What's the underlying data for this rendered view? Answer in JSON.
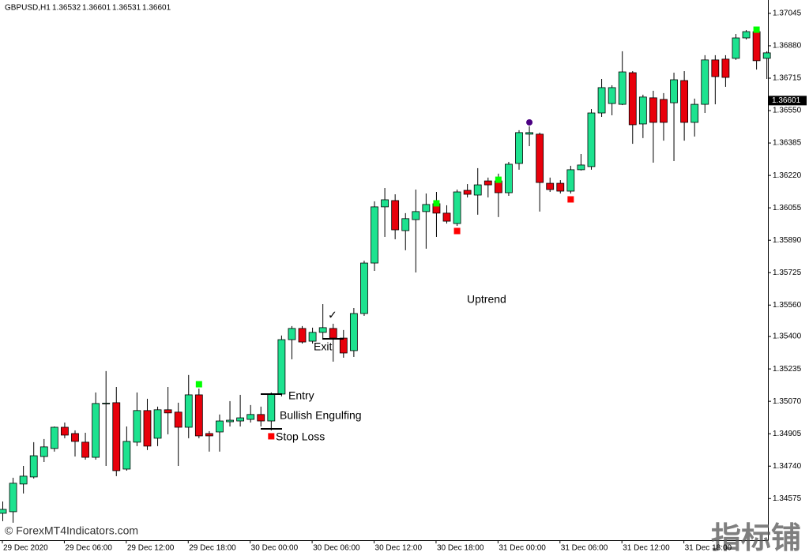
{
  "chart_data": {
    "type": "candlestick",
    "symbol": "GBPUSD,H1",
    "header_ohlc": [
      1.36532,
      1.36601,
      1.36531,
      1.36601
    ],
    "current_price": 1.36601,
    "up_color": "#1de28f",
    "down_color": "#e8000b",
    "buy_color": "#00ff00",
    "sell_color": "#ff0000",
    "exit_color": "#4b0082",
    "ylim": [
      1.34363,
      1.37113
    ],
    "yticks": [
      1.37045,
      {
        "value": 1.3688,
        "label": "1.36880"
      },
      1.36715,
      {
        "value": 1.3655,
        "label": "1.36550"
      },
      1.36385,
      {
        "value": 1.3622,
        "label": "1.36220"
      },
      1.36055,
      {
        "value": 1.3589,
        "label": "1.35890"
      },
      1.35725,
      {
        "value": 1.3556,
        "label": "1.35560"
      },
      {
        "value": 1.354,
        "label": "1.35400"
      },
      1.35235,
      {
        "value": 1.3507,
        "label": "1.35070"
      },
      1.34905,
      {
        "value": 1.3474,
        "label": "1.34740"
      },
      1.34575
    ],
    "categories": [
      "29 Dec 2020",
      null,
      null,
      null,
      null,
      null,
      "29 Dec 06:00",
      null,
      null,
      null,
      null,
      null,
      "29 Dec 12:00",
      null,
      null,
      null,
      null,
      null,
      "29 Dec 18:00",
      null,
      null,
      null,
      null,
      null,
      "30 Dec 00:00",
      null,
      null,
      null,
      null,
      null,
      "30 Dec 06:00",
      null,
      null,
      null,
      null,
      null,
      "30 Dec 12:00",
      null,
      null,
      null,
      null,
      null,
      "30 Dec 18:00",
      null,
      null,
      null,
      null,
      null,
      "31 Dec 00:00",
      null,
      null,
      null,
      null,
      null,
      "31 Dec 06:00",
      null,
      null,
      null,
      null,
      null,
      "31 Dec 12:00",
      null,
      null,
      null,
      null,
      null,
      "31 Dec 18:00",
      null,
      null,
      null,
      null,
      null,
      null,
      null,
      null
    ],
    "open": [
      1.345,
      1.34508,
      1.34649,
      1.34685,
      1.34789,
      1.3483,
      1.34938,
      1.34906,
      1.34862,
      1.34785,
      1.35059,
      1.35063,
      1.34725,
      1.34862,
      1.35023,
      1.34882,
      1.35027,
      1.35015,
      1.34938,
      1.35103,
      1.34906,
      1.34914,
      1.34966,
      1.3497,
      1.34978,
      1.35003,
      1.3497,
      1.35107,
      1.35384,
      1.35441,
      1.35376,
      1.35421,
      1.35441,
      1.35392,
      1.35328,
      1.35517,
      1.35774,
      1.3606,
      1.36092,
      1.35939,
      1.35995,
      1.36036,
      1.36076,
      1.36028,
      1.35975,
      1.36144,
      1.3612,
      1.36192,
      1.36192,
      1.36132,
      1.36281,
      1.3643,
      1.3643,
      1.3618,
      1.3618,
      1.3614,
      1.36249,
      1.36265,
      1.36538,
      1.36586,
      1.36582,
      1.36743,
      1.36482,
      1.36615,
      1.36607,
      1.3659,
      1.36703,
      1.3649,
      1.36582,
      1.36808,
      1.36812,
      1.36816,
      1.3692,
      1.36952,
      1.36816
    ],
    "high": [
      1.3456,
      1.34681,
      1.34741,
      1.34862,
      1.34878,
      1.34942,
      1.34962,
      1.34922,
      1.3491,
      1.35115,
      1.35224,
      1.35143,
      1.34942,
      1.35115,
      1.35083,
      1.35043,
      1.35143,
      1.35063,
      1.35204,
      1.35135,
      1.34918,
      1.35003,
      1.35071,
      1.35103,
      1.35051,
      1.35043,
      1.35115,
      1.35405,
      1.35453,
      1.35453,
      1.35445,
      1.35565,
      1.35465,
      1.35433,
      1.35545,
      1.35786,
      1.36088,
      1.36156,
      1.36124,
      1.36028,
      1.36148,
      1.36128,
      1.36136,
      1.36068,
      1.36148,
      1.36176,
      1.36257,
      1.36209,
      1.36229,
      1.36289,
      1.3645,
      1.3647,
      1.36438,
      1.36209,
      1.36196,
      1.36269,
      1.36329,
      1.36558,
      1.36711,
      1.36679,
      1.36852,
      1.36751,
      1.36631,
      1.36651,
      1.36639,
      1.36743,
      1.36751,
      1.36611,
      1.36832,
      1.36832,
      1.36832,
      1.3694,
      1.3696,
      1.36972,
      1.36852
    ],
    "low": [
      1.3446,
      1.34452,
      1.34601,
      1.34677,
      1.34761,
      1.34814,
      1.34882,
      1.34789,
      1.34773,
      1.34773,
      1.34741,
      1.34689,
      1.34717,
      1.34842,
      1.34822,
      1.34842,
      1.34902,
      1.34741,
      1.34882,
      1.34882,
      1.34814,
      1.34814,
      1.34942,
      1.34942,
      1.34962,
      1.34942,
      1.34922,
      1.35095,
      1.35284,
      1.35364,
      1.35364,
      1.35384,
      1.35272,
      1.35292,
      1.35296,
      1.35505,
      1.35734,
      1.35907,
      1.35895,
      1.35839,
      1.35726,
      1.35847,
      1.35907,
      1.35975,
      1.35963,
      1.36108,
      1.3602,
      1.36108,
      1.36008,
      1.36116,
      1.36249,
      1.36369,
      1.36036,
      1.36136,
      1.36128,
      1.36128,
      1.36245,
      1.36249,
      1.36518,
      1.36526,
      1.36578,
      1.36381,
      1.3641,
      1.36285,
      1.36397,
      1.36293,
      1.36397,
      1.36418,
      1.36538,
      1.36582,
      1.36671,
      1.36808,
      1.36912,
      1.36759,
      1.36711
    ],
    "close": [
      1.3452,
      1.34653,
      1.34689,
      1.34793,
      1.34838,
      1.34938,
      1.34898,
      1.34866,
      1.34785,
      1.35059,
      1.35061,
      1.34717,
      1.34866,
      1.35023,
      1.34842,
      1.35027,
      1.35011,
      1.34938,
      1.35103,
      1.34894,
      1.34894,
      1.3497,
      1.34974,
      1.34986,
      1.35003,
      1.3497,
      1.35107,
      1.35384,
      1.35441,
      1.35372,
      1.35421,
      1.35445,
      1.35392,
      1.35316,
      1.35517,
      1.35774,
      1.3606,
      1.36096,
      1.35943,
      1.36,
      1.36036,
      1.36072,
      1.36028,
      1.35987,
      1.36136,
      1.36124,
      1.36172,
      1.36172,
      1.36132,
      1.36277,
      1.36438,
      1.36438,
      1.36184,
      1.36148,
      1.3614,
      1.36249,
      1.36273,
      1.36538,
      1.36667,
      1.36667,
      1.36747,
      1.36478,
      1.36619,
      1.3649,
      1.3649,
      1.36707,
      1.3649,
      1.36582,
      1.36808,
      1.36723,
      1.36719,
      1.3692,
      1.36952,
      1.36804,
      1.36844
    ],
    "buy_markers": [
      null,
      null,
      null,
      null,
      null,
      null,
      null,
      null,
      null,
      null,
      null,
      null,
      null,
      null,
      null,
      null,
      null,
      null,
      null,
      1.35159,
      null,
      null,
      null,
      null,
      null,
      null,
      null,
      null,
      null,
      null,
      null,
      null,
      null,
      null,
      null,
      null,
      null,
      null,
      null,
      null,
      null,
      null,
      1.3608,
      null,
      null,
      null,
      null,
      null,
      1.362,
      null,
      null,
      null,
      null,
      null,
      null,
      null,
      null,
      null,
      null,
      null,
      null,
      null,
      null,
      null,
      null,
      null,
      null,
      null,
      null,
      null,
      null,
      null,
      null,
      1.36964,
      null
    ],
    "sell_markers": [
      null,
      null,
      null,
      null,
      null,
      null,
      null,
      null,
      null,
      null,
      null,
      null,
      null,
      null,
      null,
      null,
      null,
      null,
      null,
      null,
      null,
      null,
      null,
      null,
      null,
      null,
      1.34894,
      null,
      null,
      null,
      null,
      null,
      null,
      null,
      null,
      null,
      null,
      null,
      null,
      null,
      null,
      null,
      null,
      null,
      1.35939,
      null,
      null,
      null,
      null,
      null,
      null,
      null,
      null,
      null,
      null,
      1.361,
      null,
      null,
      null,
      null,
      null,
      null,
      null,
      null,
      null,
      null,
      null,
      null,
      null,
      null,
      null,
      null,
      null,
      null,
      null
    ],
    "exit_markers": [
      null,
      null,
      null,
      null,
      null,
      null,
      null,
      null,
      null,
      null,
      null,
      null,
      null,
      null,
      null,
      null,
      null,
      null,
      null,
      null,
      null,
      null,
      null,
      null,
      null,
      null,
      null,
      null,
      null,
      null,
      null,
      null,
      null,
      null,
      null,
      null,
      null,
      null,
      null,
      null,
      null,
      null,
      null,
      null,
      null,
      null,
      null,
      null,
      null,
      null,
      null,
      1.3649,
      null,
      null,
      null,
      null,
      null,
      null,
      null,
      null,
      null,
      null,
      null,
      null,
      null,
      null,
      null,
      null,
      null,
      null,
      null,
      null,
      null,
      null,
      null
    ],
    "annotations": [
      {
        "text": "Entry",
        "price": 1.35107
      },
      {
        "text": "Bullish Engulfing"
      },
      {
        "text": "Stop Loss",
        "price": 1.3493
      },
      {
        "text": "Exit",
        "price": 1.35388
      },
      {
        "text": "Uptrend"
      },
      {
        "text": "✓"
      }
    ],
    "watermark": "© ForexMT4Indicators.com",
    "corner_mark": "指标铺"
  }
}
